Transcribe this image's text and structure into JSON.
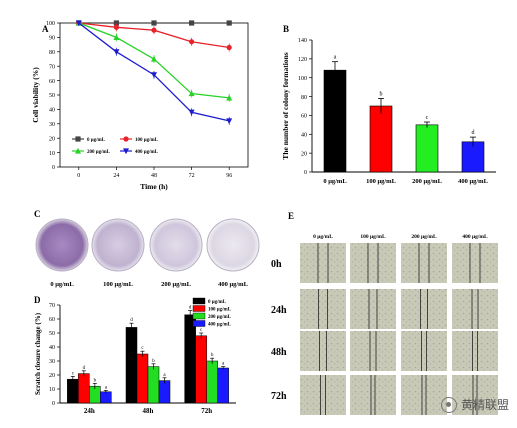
{
  "chart_data": [
    {
      "panel": "A",
      "type": "line",
      "xlabel": "Time (h)",
      "ylabel": "Cell viability (%)",
      "x": [
        0,
        24,
        48,
        72,
        96
      ],
      "xticks": [
        "0",
        "24",
        "48",
        "72",
        "96"
      ],
      "ylim": [
        0,
        100
      ],
      "yticks": [
        "0",
        "10",
        "20",
        "30",
        "40",
        "50",
        "60",
        "70",
        "80",
        "90",
        "100"
      ],
      "legend_position": "bottom-left",
      "series": [
        {
          "name": "0 μg/mL",
          "color": "#444444",
          "marker": "square",
          "values": [
            100,
            100,
            100,
            100,
            100
          ]
        },
        {
          "name": "100 μg/mL",
          "color": "#e8222a",
          "marker": "circle",
          "values": [
            100,
            97,
            95,
            87,
            83
          ]
        },
        {
          "name": "200 μg/mL",
          "color": "#28d228",
          "marker": "triangle-up",
          "values": [
            100,
            90,
            75,
            51,
            48
          ]
        },
        {
          "name": "400 μg/mL",
          "color": "#1c1ccf",
          "marker": "triangle-down",
          "values": [
            100,
            80,
            64,
            38,
            32
          ]
        }
      ]
    },
    {
      "panel": "B",
      "type": "bar",
      "ylabel": "The number of colony formations",
      "categories": [
        "0 μg/mL",
        "100 μg/mL",
        "200 μg/mL",
        "400 μg/mL"
      ],
      "values": [
        108,
        70,
        50,
        32
      ],
      "errors": [
        9,
        8,
        3,
        5
      ],
      "letters": [
        "a",
        "b",
        "c",
        "d"
      ],
      "colors": [
        "#000000",
        "#ff0000",
        "#22ee22",
        "#1a1aff"
      ],
      "ylim": [
        0,
        140
      ],
      "yticks": [
        "0",
        "20",
        "40",
        "60",
        "80",
        "100",
        "120",
        "140"
      ]
    },
    {
      "panel": "D",
      "type": "bar",
      "ylabel": "Scratch closure change (%)",
      "categories": [
        "24h",
        "48h",
        "72h"
      ],
      "ylim": [
        0,
        70
      ],
      "yticks": [
        "0",
        "10",
        "20",
        "30",
        "40",
        "50",
        "60",
        "70"
      ],
      "legend_position": "top-right",
      "series": [
        {
          "name": "0 μg/mL",
          "color": "#000000",
          "values": [
            17,
            54,
            63
          ],
          "errors": [
            2,
            3,
            3
          ],
          "letters": [
            "c",
            "d",
            "d"
          ]
        },
        {
          "name": "100 μg/mL",
          "color": "#ff0000",
          "values": [
            21,
            35,
            48
          ],
          "errors": [
            2,
            2,
            2
          ],
          "letters": [
            "d",
            "c",
            "c"
          ]
        },
        {
          "name": "200 μg/mL",
          "color": "#22dd22",
          "values": [
            12,
            26,
            30
          ],
          "errors": [
            2,
            2,
            2
          ],
          "letters": [
            "b",
            "b",
            "b"
          ]
        },
        {
          "name": "400 μg/mL",
          "color": "#1a1aff",
          "values": [
            8,
            16,
            25
          ],
          "errors": [
            1,
            2,
            1
          ],
          "letters": [
            "a",
            "a",
            "a"
          ]
        }
      ]
    }
  ],
  "panel_c": {
    "letter": "C",
    "labels": [
      "0 μg/mL",
      "100 μg/mL",
      "200 μg/mL",
      "400 μg/mL"
    ]
  },
  "panel_e": {
    "letter": "E",
    "columns": [
      "0 μg/mL",
      "100 μg/mL",
      "200 μg/mL",
      "400 μg/mL"
    ],
    "rows": [
      "0h",
      "24h",
      "48h",
      "72h"
    ]
  },
  "watermark": "黄精联盟"
}
